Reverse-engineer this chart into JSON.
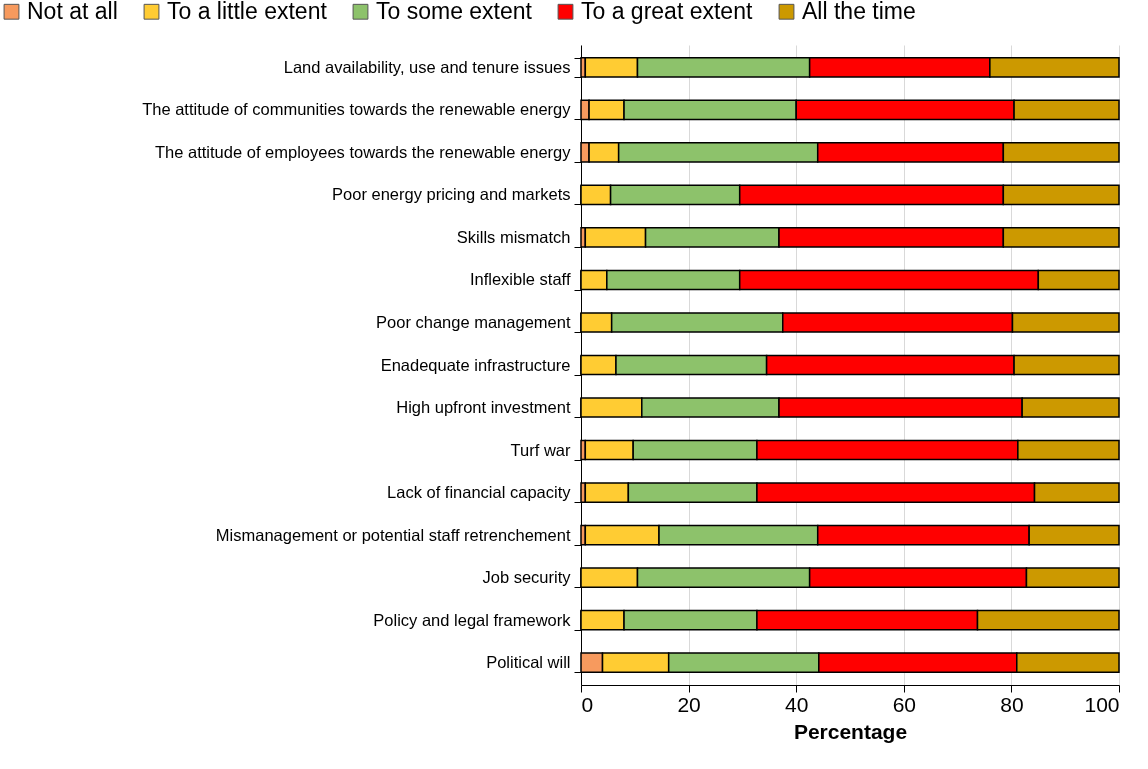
{
  "chart_data": {
    "type": "bar",
    "orientation": "horizontal",
    "stacked": true,
    "xlabel": "Percentage",
    "categories": [
      "Land availability, use and tenure issues",
      "The attitude of communities towards the renewable energy",
      "The attitude of employees towards the renewable energy",
      "Poor energy pricing and markets",
      "Skills mismatch",
      "Inflexible staff",
      "Poor change management",
      "Enadequate infrastructure",
      "High upfront investment",
      "Turf war",
      "Lack of financial capacity",
      "Mismanagement or potential staff retrenchement",
      "Job security",
      "Policy and legal framework",
      "Political will"
    ],
    "series": [
      {
        "name": "Not at all",
        "color": "#f79a5e",
        "values": [
          0.8,
          1.5,
          1.5,
          0,
          0.8,
          0,
          0,
          0,
          0,
          0.8,
          0.8,
          0.8,
          0,
          0,
          4
        ]
      },
      {
        "name": "To a little extent",
        "color": "#ffcc33",
        "values": [
          9.7,
          6.5,
          5.5,
          5.5,
          11.2,
          4.8,
          5.7,
          6.5,
          11.3,
          8.9,
          8,
          13.7,
          10.5,
          8,
          12.3
        ]
      },
      {
        "name": "To some extent",
        "color": "#8dc26b",
        "values": [
          32,
          32,
          37,
          24,
          24.8,
          24.7,
          31.8,
          28,
          25.5,
          23,
          23.9,
          29.5,
          32,
          24.7,
          27.9
        ]
      },
      {
        "name": "To a great extent",
        "color": "#ff0000",
        "values": [
          33.5,
          40.5,
          34.5,
          49,
          41.7,
          55.5,
          42.7,
          46,
          45.2,
          48.5,
          51.6,
          39.3,
          40.3,
          41,
          36.8
        ]
      },
      {
        "name": "All the time",
        "color": "#cc9900",
        "values": [
          24,
          19.5,
          21.5,
          21.5,
          21.5,
          15,
          19.8,
          19.5,
          18,
          18.8,
          15.7,
          16.7,
          17.2,
          26.3,
          19
        ]
      }
    ],
    "xlim": [
      0,
      100
    ],
    "xticks": [
      0,
      20,
      40,
      60,
      80,
      100
    ],
    "grid": "x",
    "legend": "top"
  }
}
